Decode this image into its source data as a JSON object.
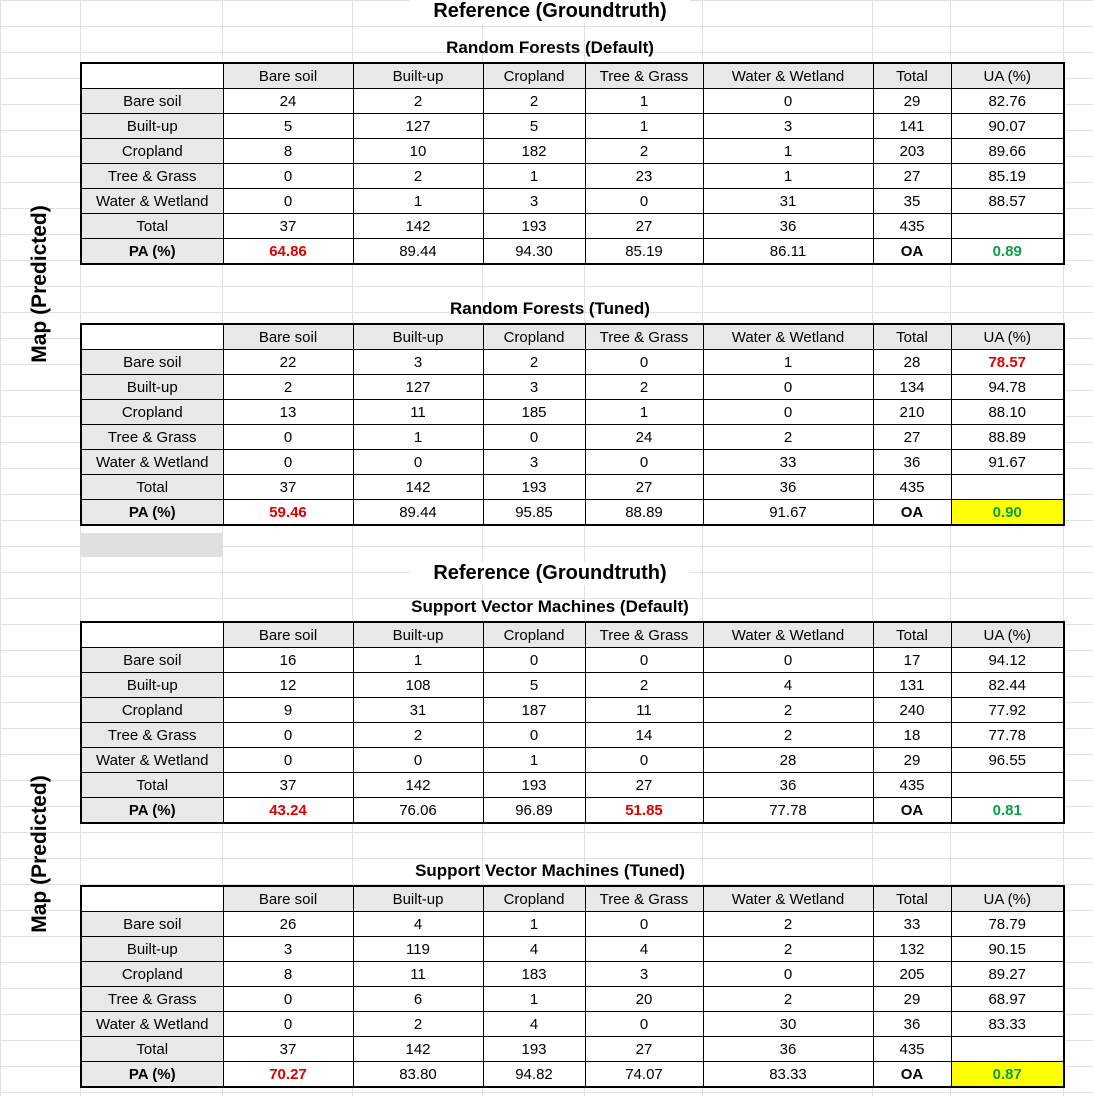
{
  "header_top": "Reference (Groundtruth)",
  "header_mid": "Reference (Groundtruth)",
  "side_label": "Map (Predicted)",
  "colors": {
    "red": "#e00000",
    "green": "#0a9e45",
    "highlight": "#ffff00",
    "header_bg": "#e8e8e8"
  },
  "columns": [
    "Bare soil",
    "Built-up",
    "Cropland",
    "Tree & Grass",
    "Water & Wetland",
    "Total",
    "UA (%)"
  ],
  "pa_label": "PA (%)",
  "oa_label": "OA",
  "tables": [
    {
      "title": "Random Forests (Default)",
      "rows": [
        {
          "label": "Bare soil",
          "cells": [
            "24",
            "2",
            "2",
            "1",
            "0",
            "29",
            "82.76"
          ]
        },
        {
          "label": "Built-up",
          "cells": [
            "5",
            "127",
            "5",
            "1",
            "3",
            "141",
            "90.07"
          ]
        },
        {
          "label": "Cropland",
          "cells": [
            "8",
            "10",
            "182",
            "2",
            "1",
            "203",
            "89.66"
          ]
        },
        {
          "label": "Tree & Grass",
          "cells": [
            "0",
            "2",
            "1",
            "23",
            "1",
            "27",
            "85.19"
          ]
        },
        {
          "label": "Water & Wetland",
          "cells": [
            "0",
            "1",
            "3",
            "0",
            "31",
            "35",
            "88.57"
          ]
        },
        {
          "label": "Total",
          "cells": [
            "37",
            "142",
            "193",
            "27",
            "36",
            "435",
            ""
          ]
        }
      ],
      "pa": [
        "64.86",
        "89.44",
        "94.30",
        "85.19",
        "86.11"
      ],
      "oa": "0.89"
    },
    {
      "title": "Random Forests (Tuned)",
      "rows": [
        {
          "label": "Bare soil",
          "cells": [
            "22",
            "3",
            "2",
            "0",
            "1",
            "28",
            "78.57"
          ]
        },
        {
          "label": "Built-up",
          "cells": [
            "2",
            "127",
            "3",
            "2",
            "0",
            "134",
            "94.78"
          ]
        },
        {
          "label": "Cropland",
          "cells": [
            "13",
            "11",
            "185",
            "1",
            "0",
            "210",
            "88.10"
          ]
        },
        {
          "label": "Tree & Grass",
          "cells": [
            "0",
            "1",
            "0",
            "24",
            "2",
            "27",
            "88.89"
          ]
        },
        {
          "label": "Water & Wetland",
          "cells": [
            "0",
            "0",
            "3",
            "0",
            "33",
            "36",
            "91.67"
          ]
        },
        {
          "label": "Total",
          "cells": [
            "37",
            "142",
            "193",
            "27",
            "36",
            "435",
            ""
          ]
        }
      ],
      "pa": [
        "59.46",
        "89.44",
        "95.85",
        "88.89",
        "91.67"
      ],
      "oa": "0.90"
    },
    {
      "title": "Support Vector Machines (Default)",
      "rows": [
        {
          "label": "Bare soil",
          "cells": [
            "16",
            "1",
            "0",
            "0",
            "0",
            "17",
            "94.12"
          ]
        },
        {
          "label": "Built-up",
          "cells": [
            "12",
            "108",
            "5",
            "2",
            "4",
            "131",
            "82.44"
          ]
        },
        {
          "label": "Cropland",
          "cells": [
            "9",
            "31",
            "187",
            "11",
            "2",
            "240",
            "77.92"
          ]
        },
        {
          "label": "Tree & Grass",
          "cells": [
            "0",
            "2",
            "0",
            "14",
            "2",
            "18",
            "77.78"
          ]
        },
        {
          "label": "Water & Wetland",
          "cells": [
            "0",
            "0",
            "1",
            "0",
            "28",
            "29",
            "96.55"
          ]
        },
        {
          "label": "Total",
          "cells": [
            "37",
            "142",
            "193",
            "27",
            "36",
            "435",
            ""
          ]
        }
      ],
      "pa": [
        "43.24",
        "76.06",
        "96.89",
        "51.85",
        "77.78"
      ],
      "oa": "0.81"
    },
    {
      "title": "Support Vector Machines (Tuned)",
      "rows": [
        {
          "label": "Bare soil",
          "cells": [
            "26",
            "4",
            "1",
            "0",
            "2",
            "33",
            "78.79"
          ]
        },
        {
          "label": "Built-up",
          "cells": [
            "3",
            "119",
            "4",
            "4",
            "2",
            "132",
            "90.15"
          ]
        },
        {
          "label": "Cropland",
          "cells": [
            "8",
            "11",
            "183",
            "3",
            "0",
            "205",
            "89.27"
          ]
        },
        {
          "label": "Tree & Grass",
          "cells": [
            "0",
            "6",
            "1",
            "20",
            "2",
            "29",
            "68.97"
          ]
        },
        {
          "label": "Water & Wetland",
          "cells": [
            "0",
            "2",
            "4",
            "0",
            "30",
            "36",
            "83.33"
          ]
        },
        {
          "label": "Total",
          "cells": [
            "37",
            "142",
            "193",
            "27",
            "36",
            "435",
            ""
          ]
        }
      ],
      "pa": [
        "70.27",
        "83.80",
        "94.82",
        "74.07",
        "83.33"
      ],
      "oa": "0.87"
    }
  ]
}
